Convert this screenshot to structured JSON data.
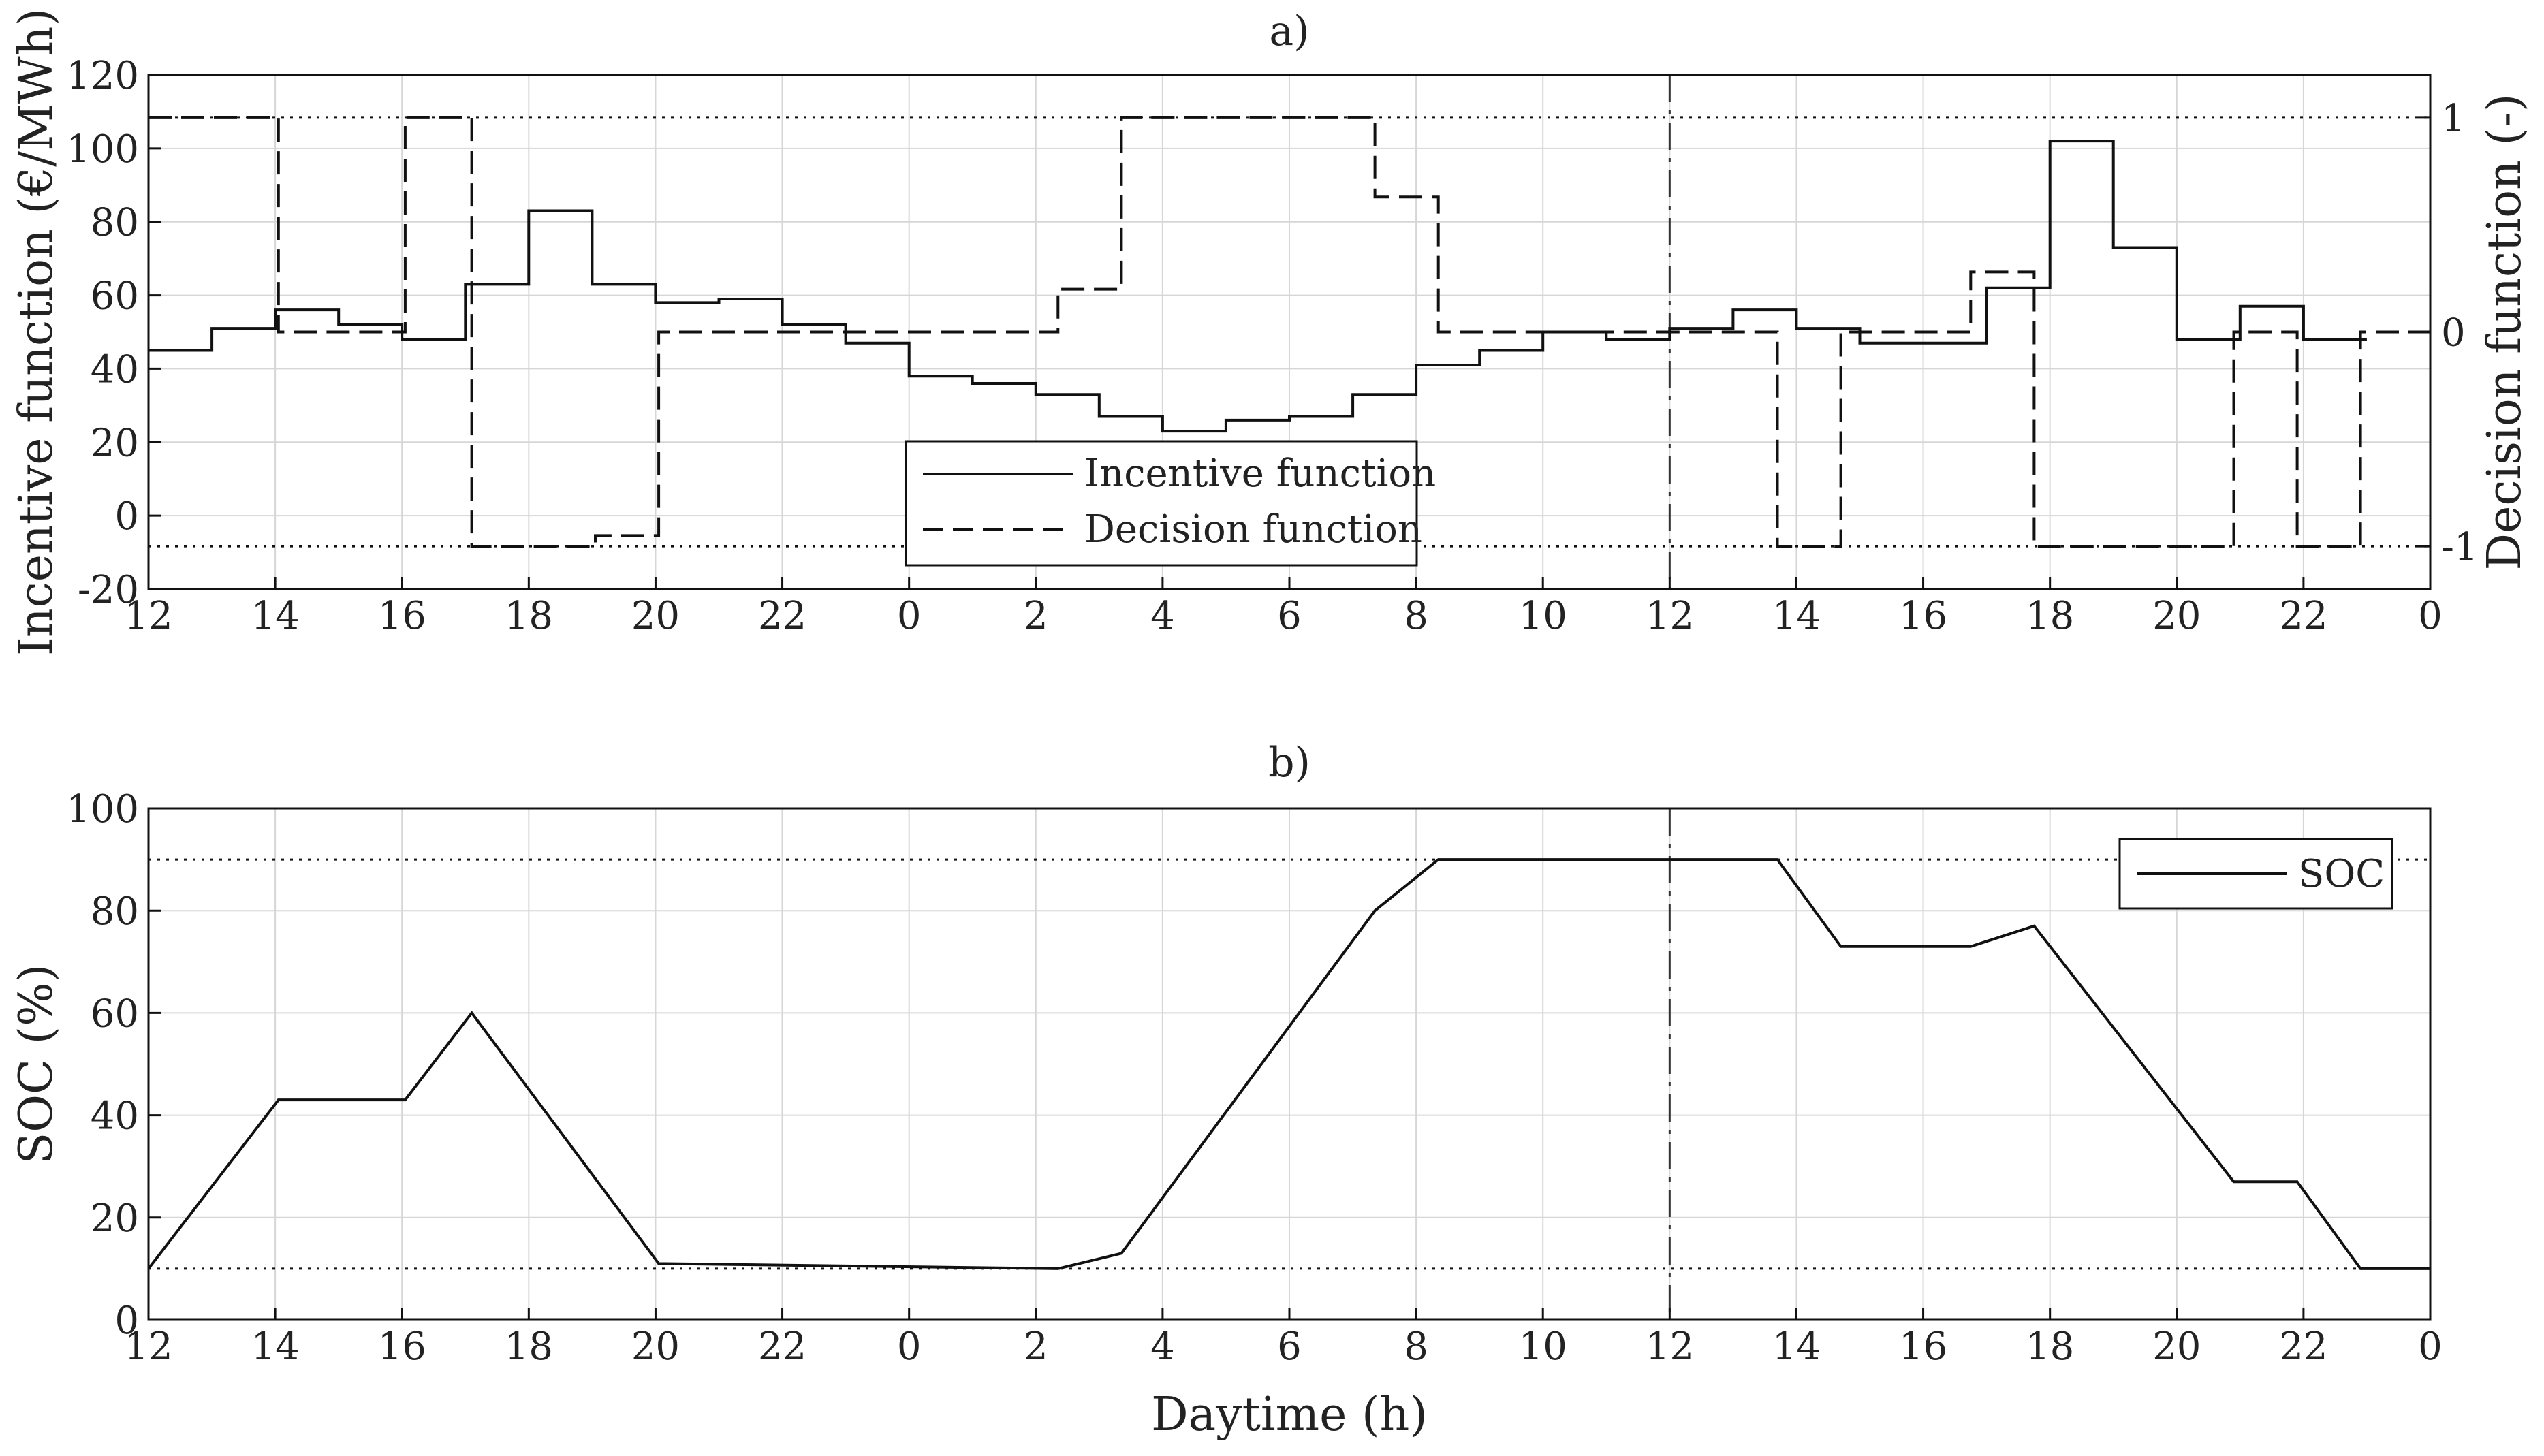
{
  "chart_data": [
    {
      "type": "line",
      "title": "a)",
      "xlabel": "",
      "ylabel": "Incentive function (€/MWh)",
      "y2label": "Decision function (-)",
      "x_tick_labels": [
        "12",
        "14",
        "16",
        "18",
        "20",
        "22",
        "0",
        "2",
        "4",
        "6",
        "8",
        "10",
        "12",
        "14",
        "16",
        "18",
        "20",
        "22",
        "0"
      ],
      "xlim": [
        0,
        36
      ],
      "ylim": [
        -20,
        120
      ],
      "y_ticks": [
        -20,
        0,
        20,
        40,
        60,
        80,
        100,
        120
      ],
      "y2lim": [
        -1.2,
        1.2
      ],
      "y2_ticks": [
        -1,
        0,
        1
      ],
      "grid": true,
      "legend_position": "bottom-center",
      "series": [
        {
          "name": "Incentive function",
          "axis": "left",
          "style": "solid",
          "step": true,
          "values": [
            45,
            51,
            56,
            52,
            48,
            63,
            83,
            63,
            58,
            59,
            52,
            47,
            38,
            36,
            33,
            27,
            23,
            26,
            27,
            33,
            41,
            45,
            50,
            48,
            51,
            56,
            51,
            47,
            47,
            62,
            102,
            73,
            48,
            57,
            48
          ]
        },
        {
          "name": "Decision function",
          "axis": "right",
          "style": "dashed",
          "step": true,
          "points": [
            [
              0,
              1
            ],
            [
              2.05,
              1
            ],
            [
              2.05,
              0
            ],
            [
              4.05,
              0
            ],
            [
              4.05,
              1
            ],
            [
              5.1,
              1
            ],
            [
              5.1,
              -1
            ],
            [
              7.05,
              -1
            ],
            [
              7.05,
              -0.95
            ],
            [
              8.05,
              -0.95
            ],
            [
              8.05,
              0
            ],
            [
              14.35,
              0
            ],
            [
              14.35,
              0.2
            ],
            [
              15.35,
              0.2
            ],
            [
              15.35,
              1
            ],
            [
              19.35,
              1
            ],
            [
              19.35,
              0.63
            ],
            [
              20.35,
              0.63
            ],
            [
              20.35,
              0
            ],
            [
              25.7,
              0
            ],
            [
              25.7,
              -1
            ],
            [
              26.7,
              -1
            ],
            [
              26.7,
              0
            ],
            [
              28.75,
              0
            ],
            [
              28.75,
              0.28
            ],
            [
              29.75,
              0.28
            ],
            [
              29.75,
              -1
            ],
            [
              32.9,
              -1
            ],
            [
              32.9,
              0
            ],
            [
              33.9,
              0
            ],
            [
              33.9,
              -1
            ],
            [
              34.9,
              -1
            ],
            [
              34.9,
              0
            ],
            [
              36,
              0
            ]
          ]
        }
      ],
      "reference_lines": {
        "dotted_y2": [
          1,
          -1
        ],
        "dashdot_x": [
          24
        ]
      }
    },
    {
      "type": "line",
      "title": "b)",
      "xlabel": "Daytime (h)",
      "ylabel": "SOC (%)",
      "x_tick_labels": [
        "12",
        "14",
        "16",
        "18",
        "20",
        "22",
        "0",
        "2",
        "4",
        "6",
        "8",
        "10",
        "12",
        "14",
        "16",
        "18",
        "20",
        "22",
        "0"
      ],
      "xlim": [
        0,
        36
      ],
      "ylim": [
        0,
        100
      ],
      "y_ticks": [
        0,
        20,
        40,
        60,
        80,
        100
      ],
      "grid": true,
      "legend_position": "top-right",
      "series": [
        {
          "name": "SOC",
          "style": "solid",
          "points": [
            [
              0,
              10
            ],
            [
              2.05,
              43
            ],
            [
              4.05,
              43
            ],
            [
              5.1,
              60
            ],
            [
              8.05,
              11
            ],
            [
              14.35,
              10
            ],
            [
              15.35,
              13
            ],
            [
              19.35,
              80
            ],
            [
              20.35,
              90
            ],
            [
              25.7,
              90
            ],
            [
              26.7,
              73
            ],
            [
              28.75,
              73
            ],
            [
              29.75,
              77
            ],
            [
              32.9,
              27
            ],
            [
              33.9,
              27
            ],
            [
              34.9,
              10
            ],
            [
              36,
              10
            ]
          ]
        }
      ],
      "reference_lines": {
        "dotted_y": [
          90,
          10
        ],
        "dashdot_x": [
          24
        ]
      }
    }
  ]
}
